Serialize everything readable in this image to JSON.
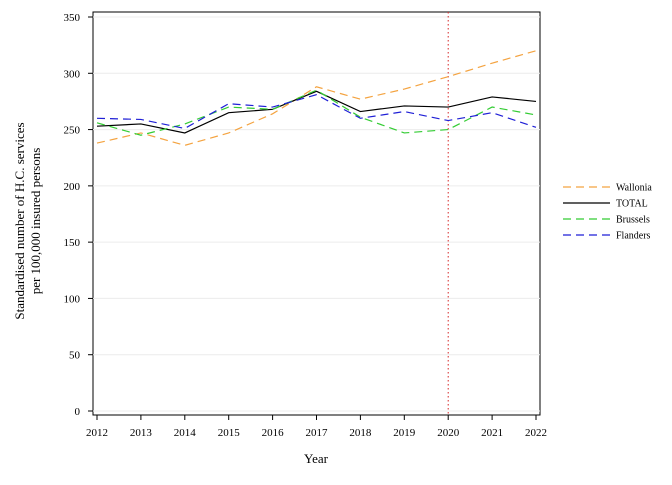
{
  "chart_data": {
    "type": "line",
    "title": "",
    "xlabel": "Year",
    "ylabel_lines": [
      "Standardised number of H.C. services",
      "per 100,000 insured persons"
    ],
    "x": [
      2012,
      2013,
      2014,
      2015,
      2016,
      2017,
      2018,
      2019,
      2020,
      2021,
      2022
    ],
    "xlim": [
      2012,
      2022
    ],
    "ylim": [
      0,
      350
    ],
    "yticks": [
      0,
      50,
      100,
      150,
      200,
      250,
      300,
      350
    ],
    "grid": "horizontal",
    "legend_position": "right",
    "reference_line": {
      "x": 2020,
      "style": "dotted",
      "color": "#d62728"
    },
    "series": [
      {
        "name": "Wallonia",
        "color": "#f4a340",
        "dash": "dashed",
        "values": [
          238,
          247,
          236,
          247,
          264,
          288,
          277,
          286,
          297,
          309,
          320
        ]
      },
      {
        "name": "TOTAL",
        "color": "#000000",
        "dash": "solid",
        "values": [
          253,
          255,
          247,
          265,
          268,
          284,
          266,
          271,
          270,
          279,
          275
        ]
      },
      {
        "name": "Brussels",
        "color": "#33cc33",
        "dash": "dashed",
        "values": [
          256,
          245,
          255,
          270,
          268,
          285,
          261,
          247,
          250,
          270,
          263
        ]
      },
      {
        "name": "Flanders",
        "color": "#1f1fd6",
        "dash": "dashed",
        "values": [
          260,
          259,
          251,
          273,
          270,
          281,
          260,
          266,
          258,
          265,
          252
        ]
      }
    ]
  }
}
